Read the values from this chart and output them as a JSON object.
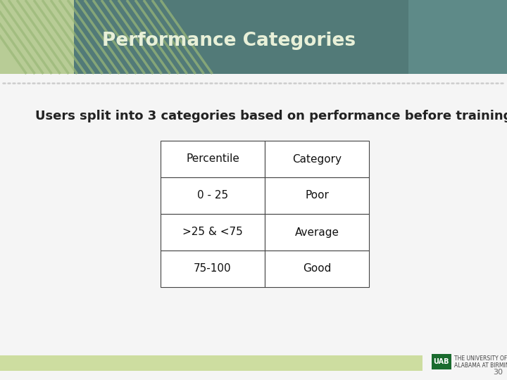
{
  "title": "Performance Categories",
  "subtitle": "Users split into 3 categories based on performance before training",
  "table_headers": [
    "Percentile",
    "Category"
  ],
  "table_rows": [
    [
      "0 - 25",
      "Poor"
    ],
    [
      ">25 & <75",
      "Average"
    ],
    [
      "75-100",
      "Good"
    ]
  ],
  "header_teal": "#527a78",
  "header_left_green": "#b8cc96",
  "title_color": "#e8f0d8",
  "subtitle_color": "#222222",
  "table_border_color": "#444444",
  "table_text_color": "#111111",
  "bg_color": "#f5f5f5",
  "footer_bar_color": "#cddda0",
  "footer_text_color": "#666666",
  "page_number": "30",
  "dot_color": "#cccccc",
  "left_stripe_color": "#b8cc96",
  "stripe_line_color": "#9ab878",
  "uab_green": "#1a6b2e"
}
